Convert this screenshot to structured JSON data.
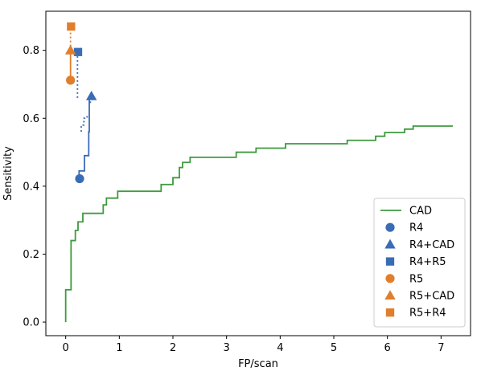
{
  "chart_data": {
    "type": "line",
    "xlabel": "FP/scan",
    "ylabel": "Sensitivity",
    "xlim": [
      -0.37,
      7.55
    ],
    "ylim": [
      -0.04,
      0.915
    ],
    "xticks": [
      0,
      1,
      2,
      3,
      4,
      5,
      6,
      7
    ],
    "yticks": [
      0.0,
      0.2,
      0.4,
      0.6,
      0.8
    ],
    "xtick_labels": [
      "0",
      "1",
      "2",
      "3",
      "4",
      "5",
      "6",
      "7"
    ],
    "ytick_labels": [
      "0.0",
      "0.2",
      "0.4",
      "0.6",
      "0.8"
    ],
    "grid": false,
    "legend_position": "lower-right",
    "colors": {
      "blue": "#3a6cb5",
      "orange": "#e07e2c",
      "green": "#3e9a3e"
    },
    "cad_curve": {
      "name": "CAD",
      "step_points": [
        [
          0.0,
          0.0
        ],
        [
          0.0,
          0.095
        ],
        [
          0.1,
          0.095
        ],
        [
          0.1,
          0.24
        ],
        [
          0.18,
          0.24
        ],
        [
          0.18,
          0.27
        ],
        [
          0.23,
          0.27
        ],
        [
          0.23,
          0.295
        ],
        [
          0.32,
          0.295
        ],
        [
          0.32,
          0.32
        ],
        [
          0.7,
          0.32
        ],
        [
          0.7,
          0.345
        ],
        [
          0.76,
          0.345
        ],
        [
          0.76,
          0.365
        ],
        [
          0.97,
          0.365
        ],
        [
          0.97,
          0.385
        ],
        [
          1.78,
          0.385
        ],
        [
          1.78,
          0.405
        ],
        [
          2.0,
          0.405
        ],
        [
          2.0,
          0.425
        ],
        [
          2.12,
          0.425
        ],
        [
          2.12,
          0.455
        ],
        [
          2.18,
          0.455
        ],
        [
          2.18,
          0.47
        ],
        [
          2.32,
          0.47
        ],
        [
          2.32,
          0.485
        ],
        [
          3.18,
          0.485
        ],
        [
          3.18,
          0.5
        ],
        [
          3.55,
          0.5
        ],
        [
          3.55,
          0.512
        ],
        [
          4.1,
          0.512
        ],
        [
          4.1,
          0.525
        ],
        [
          5.25,
          0.525
        ],
        [
          5.25,
          0.535
        ],
        [
          5.78,
          0.535
        ],
        [
          5.78,
          0.547
        ],
        [
          5.95,
          0.547
        ],
        [
          5.95,
          0.558
        ],
        [
          6.32,
          0.558
        ],
        [
          6.32,
          0.568
        ],
        [
          6.48,
          0.568
        ],
        [
          6.48,
          0.577
        ],
        [
          7.22,
          0.577
        ]
      ]
    },
    "reader_curves": [
      {
        "reader": "R4",
        "color": "blue",
        "solid_step_points": [
          [
            0.25,
            0.422
          ],
          [
            0.25,
            0.445
          ],
          [
            0.35,
            0.445
          ],
          [
            0.35,
            0.49
          ],
          [
            0.43,
            0.49
          ],
          [
            0.43,
            0.56
          ],
          [
            0.44,
            0.56
          ],
          [
            0.44,
            0.665
          ]
        ],
        "dotted_paths": [
          [
            [
              0.29,
              0.56
            ],
            [
              0.29,
              0.58
            ],
            [
              0.34,
              0.58
            ],
            [
              0.34,
              0.6
            ],
            [
              0.4,
              0.6
            ],
            [
              0.4,
              0.61
            ]
          ],
          [
            [
              0.46,
              0.645
            ],
            [
              0.46,
              0.665
            ]
          ],
          [
            [
              0.22,
              0.66
            ],
            [
              0.22,
              0.795
            ]
          ]
        ]
      },
      {
        "reader": "R5",
        "color": "orange",
        "solid_step_points": [
          [
            0.09,
            0.712
          ],
          [
            0.09,
            0.8
          ]
        ],
        "dotted_paths": [
          [
            [
              0.09,
              0.8
            ],
            [
              0.09,
              0.87
            ]
          ]
        ]
      }
    ],
    "series": [
      {
        "name": "CAD",
        "kind": "line",
        "color": "green"
      },
      {
        "name": "R4",
        "kind": "point",
        "marker": "circle",
        "color": "blue",
        "x": 0.26,
        "y": 0.422
      },
      {
        "name": "R4+CAD",
        "kind": "point",
        "marker": "triangle",
        "color": "blue",
        "x": 0.48,
        "y": 0.665
      },
      {
        "name": "R4+R5",
        "kind": "point",
        "marker": "square",
        "color": "blue",
        "x": 0.23,
        "y": 0.795
      },
      {
        "name": "R5",
        "kind": "point",
        "marker": "circle",
        "color": "orange",
        "x": 0.09,
        "y": 0.712
      },
      {
        "name": "R5+CAD",
        "kind": "point",
        "marker": "triangle",
        "color": "orange",
        "x": 0.09,
        "y": 0.8
      },
      {
        "name": "R5+R4",
        "kind": "point",
        "marker": "square",
        "color": "orange",
        "x": 0.1,
        "y": 0.87
      }
    ]
  }
}
